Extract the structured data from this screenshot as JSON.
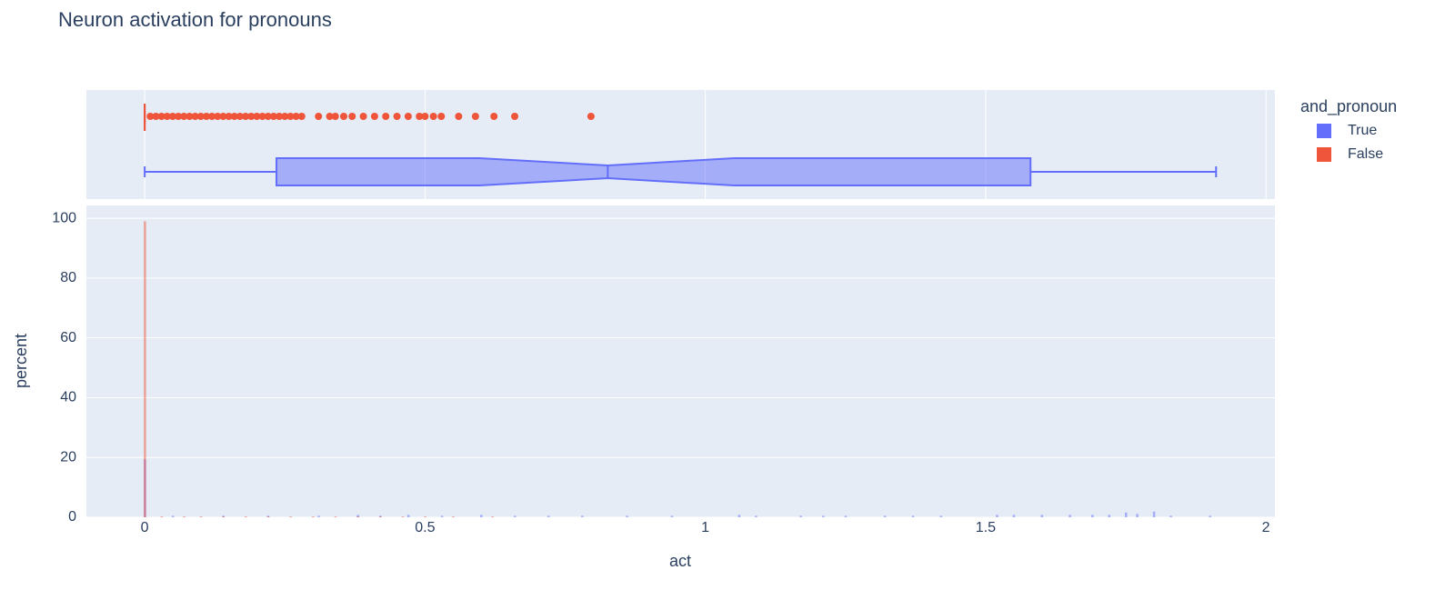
{
  "chart_data": {
    "type": "histogram_box",
    "title": "Neuron activation for pronouns",
    "x_label": "act",
    "y_label": "percent",
    "legend_title": "and_pronoun",
    "xlim": [
      -0.104,
      2.016
    ],
    "xticks": [
      0,
      0.5,
      1,
      1.5,
      2
    ],
    "ylim": [
      0,
      104.3
    ],
    "yticks": [
      0,
      20,
      40,
      60,
      80,
      100
    ],
    "grid": true,
    "series": [
      {
        "name": "True",
        "color": "#636efa",
        "x": [
          0,
          0.05,
          0.14,
          0.22,
          0.31,
          0.38,
          0.42,
          0.47,
          0.53,
          0.6,
          0.66,
          0.72,
          0.78,
          0.86,
          0.94,
          1.06,
          1.09,
          1.17,
          1.21,
          1.25,
          1.32,
          1.37,
          1.42,
          1.52,
          1.55,
          1.6,
          1.65,
          1.69,
          1.72,
          1.75,
          1.77,
          1.8,
          1.83,
          1.9
        ],
        "values": [
          19.4,
          0.5,
          0.5,
          0.5,
          0.5,
          0.8,
          0.5,
          0.8,
          0.5,
          0.8,
          0.5,
          0.5,
          0.5,
          0.5,
          0.5,
          0.8,
          0.5,
          0.5,
          0.5,
          0.5,
          0.5,
          0.5,
          0.5,
          0.8,
          0.8,
          0.8,
          0.8,
          0.8,
          0.8,
          1.6,
          1.1,
          1.9,
          0.5,
          0.5
        ],
        "box": {
          "min": 0,
          "q1": 0.235,
          "median": 0.826,
          "q3": 1.58,
          "max": 1.911,
          "notch_low": 0.597,
          "notch_high": 1.051,
          "outliers": []
        }
      },
      {
        "name": "False",
        "color": "#EF553B",
        "x": [
          0,
          0.03,
          0.07,
          0.1,
          0.14,
          0.18,
          0.22,
          0.26,
          0.3,
          0.34,
          0.38,
          0.42,
          0.46,
          0.5,
          0.55,
          0.62
        ],
        "values": [
          99,
          0.3,
          0.3,
          0.3,
          0.3,
          0.3,
          0.3,
          0.3,
          0.3,
          0.3,
          0.3,
          0.3,
          0.3,
          0.3,
          0.3,
          0.3
        ],
        "box": {
          "min": 0,
          "q1": 0,
          "median": 0,
          "q3": 0,
          "max": 0,
          "notch_low": 0,
          "notch_high": 0,
          "outliers": [
            0.01,
            0.02,
            0.03,
            0.04,
            0.05,
            0.06,
            0.07,
            0.08,
            0.09,
            0.1,
            0.11,
            0.12,
            0.13,
            0.14,
            0.15,
            0.16,
            0.17,
            0.18,
            0.19,
            0.2,
            0.21,
            0.22,
            0.23,
            0.24,
            0.25,
            0.26,
            0.27,
            0.28,
            0.31,
            0.33,
            0.34,
            0.355,
            0.37,
            0.39,
            0.41,
            0.43,
            0.45,
            0.47,
            0.49,
            0.5,
            0.515,
            0.529,
            0.56,
            0.59,
            0.623,
            0.66,
            0.796
          ]
        }
      }
    ]
  }
}
